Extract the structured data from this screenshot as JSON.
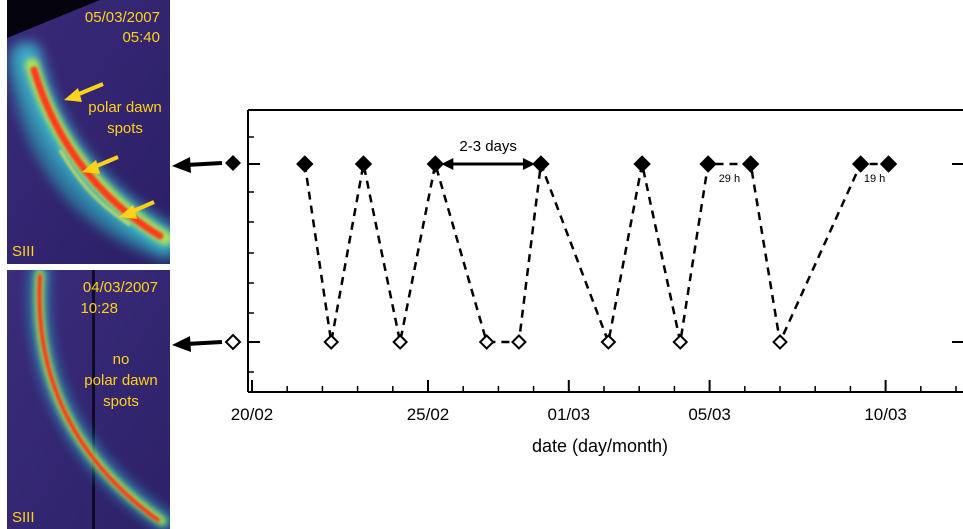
{
  "panels": [
    {
      "date": "05/03/2007",
      "time": "05:40",
      "caption": [
        "polar dawn",
        "spots"
      ],
      "band": "SIII",
      "state": "present"
    },
    {
      "date": "04/03/2007",
      "time": "10:28",
      "caption": [
        "no",
        "polar dawn",
        "spots"
      ],
      "band": "SIII",
      "state": "absent"
    }
  ],
  "colors": {
    "panel_text": "#ffd21a",
    "arrow": "#ffd21a",
    "plot_ink": "#000000",
    "background": "#ffffff"
  },
  "chart_data": {
    "type": "line",
    "series_style": "dashed black line, filled diamonds for spots present, open diamonds for spots absent",
    "x_unit": "day/month, 2007",
    "xlabel": "date (day/month)",
    "x_ticks": [
      "20/02",
      "25/02",
      "01/03",
      "05/03",
      "10/03"
    ],
    "y_levels": [
      "present",
      "absent"
    ],
    "points": [
      {
        "date": "2007-02-21 12:00",
        "state": "present"
      },
      {
        "date": "2007-02-22 06:00",
        "state": "absent"
      },
      {
        "date": "2007-02-23 04:00",
        "state": "present"
      },
      {
        "date": "2007-02-24 05:00",
        "state": "absent"
      },
      {
        "date": "2007-02-25 05:00",
        "state": "present"
      },
      {
        "date": "2007-02-26 16:00",
        "state": "absent"
      },
      {
        "date": "2007-02-27 14:00",
        "state": "absent"
      },
      {
        "date": "2007-02-28 05:00",
        "state": "present"
      },
      {
        "date": "2007-03-02 03:00",
        "state": "absent"
      },
      {
        "date": "2007-03-03 02:00",
        "state": "present"
      },
      {
        "date": "2007-03-04 04:00",
        "state": "absent"
      },
      {
        "date": "2007-03-04 23:00",
        "state": "present"
      },
      {
        "date": "2007-03-06 04:00",
        "state": "present"
      },
      {
        "date": "2007-03-07 00:00",
        "state": "absent"
      },
      {
        "date": "2007-03-09 07:00",
        "state": "present"
      },
      {
        "date": "2007-03-10 02:00",
        "state": "present"
      }
    ],
    "annotations": [
      {
        "text": "2-3 days",
        "kind": "double-arrow",
        "from": "2007-02-25 05:00",
        "to": "2007-02-28 05:00"
      },
      {
        "text": "29 h",
        "kind": "gap-label",
        "from": "2007-03-04 23:00",
        "to": "2007-03-06 04:00"
      },
      {
        "text": "19 h",
        "kind": "gap-label",
        "from": "2007-03-09 07:00",
        "to": "2007-03-10 02:00"
      }
    ]
  }
}
